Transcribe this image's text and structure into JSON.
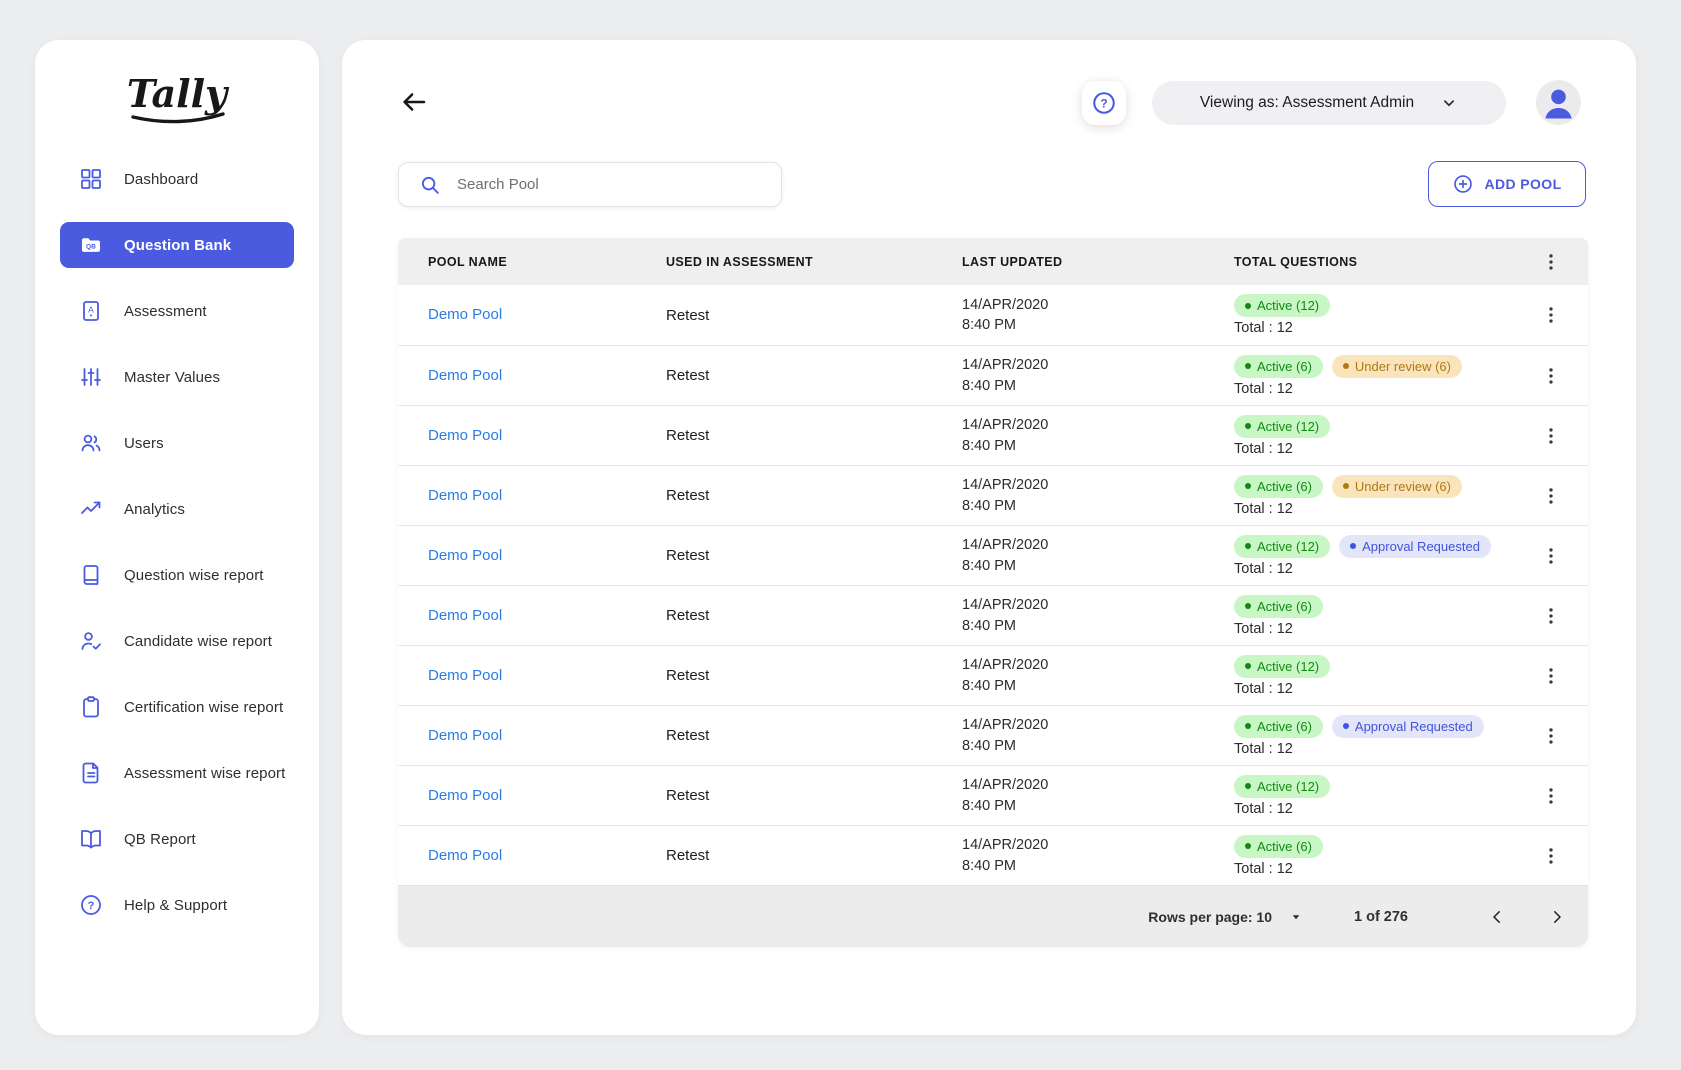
{
  "app": {
    "logo_text": "Tally"
  },
  "sidebar": {
    "items": [
      {
        "label": "Dashboard",
        "icon": "dashboard-grid-icon",
        "active": false
      },
      {
        "label": "Question Bank",
        "icon": "qb-folder-icon",
        "active": true
      },
      {
        "label": "Assessment",
        "icon": "assessment-doc-icon",
        "active": false
      },
      {
        "label": "Master Values",
        "icon": "sliders-icon",
        "active": false
      },
      {
        "label": "Users",
        "icon": "users-icon",
        "active": false
      },
      {
        "label": "Analytics",
        "icon": "trend-up-icon",
        "active": false
      },
      {
        "label": "Question wise report",
        "icon": "book-icon",
        "active": false
      },
      {
        "label": "Candidate wise report",
        "icon": "person-check-icon",
        "active": false
      },
      {
        "label": "Certification wise report",
        "icon": "clipboard-icon",
        "active": false
      },
      {
        "label": "Assessment wise report",
        "icon": "document-lines-icon",
        "active": false
      },
      {
        "label": "QB Report",
        "icon": "open-book-icon",
        "active": false
      },
      {
        "label": "Help & Support",
        "icon": "help-circle-icon",
        "active": false
      }
    ]
  },
  "topbar": {
    "viewing_as": "Viewing as: Assessment Admin"
  },
  "toolbar": {
    "search_placeholder": "Search Pool",
    "add_pool_label": "ADD POOL"
  },
  "table": {
    "columns": [
      "POOL NAME",
      "USED IN ASSESSMENT",
      "LAST UPDATED",
      "TOTAL QUESTIONS"
    ],
    "rows": [
      {
        "pool_name": "Demo Pool",
        "used_in": "Retest",
        "updated_date": "14/APR/2020",
        "updated_time": "8:40 PM",
        "total": "Total : 12",
        "badges": [
          {
            "label": "Active (12)",
            "type": "active"
          }
        ]
      },
      {
        "pool_name": "Demo Pool",
        "used_in": "Retest",
        "updated_date": "14/APR/2020",
        "updated_time": "8:40 PM",
        "total": "Total : 12",
        "badges": [
          {
            "label": "Active (6)",
            "type": "active"
          },
          {
            "label": "Under review (6)",
            "type": "review"
          }
        ]
      },
      {
        "pool_name": "Demo Pool",
        "used_in": "Retest",
        "updated_date": "14/APR/2020",
        "updated_time": "8:40 PM",
        "total": "Total : 12",
        "badges": [
          {
            "label": "Active (12)",
            "type": "active"
          }
        ]
      },
      {
        "pool_name": "Demo Pool",
        "used_in": "Retest",
        "updated_date": "14/APR/2020",
        "updated_time": "8:40 PM",
        "total": "Total : 12",
        "badges": [
          {
            "label": "Active (6)",
            "type": "active"
          },
          {
            "label": "Under review (6)",
            "type": "review"
          }
        ]
      },
      {
        "pool_name": "Demo Pool",
        "used_in": "Retest",
        "updated_date": "14/APR/2020",
        "updated_time": "8:40 PM",
        "total": "Total : 12",
        "badges": [
          {
            "label": "Active (12)",
            "type": "active"
          },
          {
            "label": "Approval Requested",
            "type": "approval"
          }
        ]
      },
      {
        "pool_name": "Demo Pool",
        "used_in": "Retest",
        "updated_date": "14/APR/2020",
        "updated_time": "8:40 PM",
        "total": "Total : 12",
        "badges": [
          {
            "label": "Active (6)",
            "type": "active"
          }
        ]
      },
      {
        "pool_name": "Demo Pool",
        "used_in": "Retest",
        "updated_date": "14/APR/2020",
        "updated_time": "8:40 PM",
        "total": "Total : 12",
        "badges": [
          {
            "label": "Active (12)",
            "type": "active"
          }
        ]
      },
      {
        "pool_name": "Demo Pool",
        "used_in": "Retest",
        "updated_date": "14/APR/2020",
        "updated_time": "8:40 PM",
        "total": "Total : 12",
        "badges": [
          {
            "label": "Active (6)",
            "type": "active"
          },
          {
            "label": "Approval Requested",
            "type": "approval"
          }
        ]
      },
      {
        "pool_name": "Demo Pool",
        "used_in": "Retest",
        "updated_date": "14/APR/2020",
        "updated_time": "8:40 PM",
        "total": "Total : 12",
        "badges": [
          {
            "label": "Active (12)",
            "type": "active"
          }
        ]
      },
      {
        "pool_name": "Demo Pool",
        "used_in": "Retest",
        "updated_date": "14/APR/2020",
        "updated_time": "8:40 PM",
        "total": "Total : 12",
        "badges": [
          {
            "label": "Active (6)",
            "type": "active"
          }
        ]
      }
    ]
  },
  "pagination": {
    "rows_per_page_label": "Rows per page: 10",
    "page_info": "1 of 276"
  },
  "colors": {
    "accent": "#4A5BE0",
    "link": "#2B7CE0",
    "page_bg": "#ECEDEF",
    "active_badge_bg": "#C9F6C5",
    "active_badge_text": "#118A11",
    "review_badge_bg": "#FAE4BC",
    "review_badge_text": "#B07A12",
    "approval_badge_bg": "#E3E5F8",
    "approval_badge_text": "#4053DE"
  }
}
